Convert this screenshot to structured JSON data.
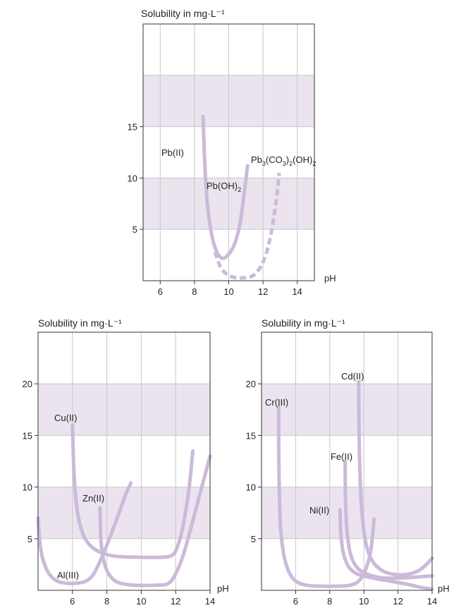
{
  "chart_data": [
    {
      "type": "line",
      "id": "pb",
      "title": "Solubility in mg·L⁻¹",
      "xlabel": "pH",
      "ylabel": "",
      "xlim": [
        5,
        15
      ],
      "ylim": [
        0,
        25
      ],
      "xticks": [
        6,
        8,
        10,
        12,
        14
      ],
      "yticks": [
        5,
        10,
        15
      ],
      "bands": [
        [
          5,
          10
        ],
        [
          15,
          20
        ]
      ],
      "grid": true,
      "series": [
        {
          "name": "Pb(II)",
          "style": "solid",
          "points": [
            [
              8.5,
              16
            ],
            [
              8.6,
              11.5
            ],
            [
              8.75,
              7.5
            ],
            [
              9.0,
              4.5
            ],
            [
              9.3,
              2.8
            ],
            [
              9.6,
              2.2
            ],
            [
              9.9,
              2.4
            ],
            [
              10.3,
              3.4
            ],
            [
              10.65,
              5.5
            ],
            [
              10.9,
              8.5
            ],
            [
              11.1,
              11.2
            ]
          ]
        },
        {
          "name": "Pb(OH)2",
          "style": "solid",
          "points": []
        },
        {
          "name": "Pb3(CO3)2(OH)2",
          "style": "dashed",
          "points": [
            [
              9.2,
              2.8
            ],
            [
              9.5,
              1.4
            ],
            [
              9.9,
              0.6
            ],
            [
              10.4,
              0.3
            ],
            [
              11.0,
              0.3
            ],
            [
              11.5,
              0.6
            ],
            [
              12.0,
              1.8
            ],
            [
              12.4,
              4.0
            ],
            [
              12.75,
              7.5
            ],
            [
              12.95,
              10.5
            ]
          ]
        }
      ],
      "labels": {
        "pb2": "Pb(II)",
        "pboh_main": "Pb(OH)",
        "pboh_sub": "2",
        "pbc_a": "Pb",
        "pbc_s1": "3",
        "pbc_b": "(CO",
        "pbc_s2": "3",
        "pbc_c": ")",
        "pbc_s3": "2",
        "pbc_d": "(OH)",
        "pbc_s4": "2"
      }
    },
    {
      "type": "line",
      "id": "cuznal",
      "title": "Solubility in mg·L⁻¹",
      "xlabel": "pH",
      "ylabel": "",
      "xlim": [
        4,
        14
      ],
      "ylim": [
        0,
        25
      ],
      "xticks": [
        6,
        8,
        10,
        12,
        14
      ],
      "yticks": [
        5,
        10,
        15,
        20
      ],
      "bands": [
        [
          5,
          10
        ],
        [
          15,
          20
        ]
      ],
      "grid": true,
      "series": [
        {
          "name": "Cu(II)",
          "points": [
            [
              6.0,
              16
            ],
            [
              6.1,
              11
            ],
            [
              6.3,
              7.5
            ],
            [
              6.6,
              5.5
            ],
            [
              7.0,
              4.4
            ],
            [
              7.6,
              3.7
            ],
            [
              8.5,
              3.3
            ],
            [
              10.0,
              3.2
            ],
            [
              11.2,
              3.2
            ],
            [
              11.8,
              3.4
            ],
            [
              12.1,
              4.2
            ],
            [
              12.4,
              6.0
            ],
            [
              12.75,
              9.5
            ],
            [
              13.0,
              13.5
            ]
          ]
        },
        {
          "name": "Zn(II)",
          "points": [
            [
              7.6,
              8.0
            ],
            [
              7.65,
              5.0
            ],
            [
              7.8,
              3.0
            ],
            [
              8.1,
              1.6
            ],
            [
              8.6,
              0.8
            ],
            [
              9.5,
              0.5
            ],
            [
              11.0,
              0.5
            ],
            [
              11.6,
              0.7
            ],
            [
              12.0,
              1.6
            ],
            [
              12.4,
              3.2
            ],
            [
              12.8,
              5.5
            ],
            [
              13.2,
              8.0
            ],
            [
              13.6,
              10.5
            ],
            [
              14.0,
              13
            ]
          ]
        },
        {
          "name": "Al(III)",
          "points": [
            [
              4.0,
              7.0
            ],
            [
              4.15,
              4.0
            ],
            [
              4.5,
              2.0
            ],
            [
              5.0,
              1.0
            ],
            [
              5.6,
              0.7
            ],
            [
              6.3,
              0.7
            ],
            [
              6.8,
              0.9
            ],
            [
              7.2,
              1.5
            ],
            [
              7.6,
              2.8
            ],
            [
              8.1,
              4.8
            ],
            [
              8.6,
              7.0
            ],
            [
              9.1,
              9.3
            ],
            [
              9.4,
              10.4
            ]
          ]
        }
      ],
      "labels": {
        "cu": "Cu(II)",
        "zn": "Zn(II)",
        "al": "Al(III)"
      }
    },
    {
      "type": "line",
      "id": "crfecdni",
      "title": "Solubility in mg·L⁻¹",
      "xlabel": "pH",
      "ylabel": "",
      "xlim": [
        4,
        14
      ],
      "ylim": [
        0,
        25
      ],
      "xticks": [
        6,
        8,
        10,
        12,
        14
      ],
      "yticks": [
        5,
        10,
        15,
        20
      ],
      "bands": [
        [
          5,
          10
        ],
        [
          15,
          20
        ]
      ],
      "grid": true,
      "series": [
        {
          "name": "Cr(III)",
          "points": [
            [
              5.0,
              17.8
            ],
            [
              5.02,
              12
            ],
            [
              5.1,
              6.5
            ],
            [
              5.3,
              3.5
            ],
            [
              5.6,
              1.8
            ],
            [
              6.0,
              0.9
            ],
            [
              6.6,
              0.5
            ],
            [
              7.5,
              0.4
            ],
            [
              8.5,
              0.4
            ],
            [
              9.2,
              0.5
            ],
            [
              9.7,
              0.9
            ],
            [
              10.1,
              2.0
            ],
            [
              10.4,
              3.8
            ],
            [
              10.6,
              6.9
            ]
          ]
        },
        {
          "name": "Cd(II)",
          "points": [
            [
              9.7,
              20.2
            ],
            [
              9.72,
              15
            ],
            [
              9.8,
              10
            ],
            [
              9.95,
              6.5
            ],
            [
              10.2,
              4.0
            ],
            [
              10.6,
              2.6
            ],
            [
              11.2,
              1.8
            ],
            [
              12.0,
              1.5
            ],
            [
              12.7,
              1.6
            ],
            [
              13.2,
              1.9
            ],
            [
              13.6,
              2.4
            ],
            [
              14.0,
              3.1
            ]
          ]
        },
        {
          "name": "Fe(II)",
          "points": [
            [
              8.9,
              12.5
            ],
            [
              8.92,
              9
            ],
            [
              9.0,
              6
            ],
            [
              9.2,
              3.6
            ],
            [
              9.6,
              2.2
            ],
            [
              10.3,
              1.5
            ],
            [
              11.2,
              1.2
            ],
            [
              12.2,
              1.2
            ],
            [
              13.2,
              1.3
            ],
            [
              14.0,
              1.4
            ]
          ]
        },
        {
          "name": "Ni(II)",
          "points": [
            [
              8.6,
              7.8
            ],
            [
              8.65,
              5.5
            ],
            [
              8.8,
              3.6
            ],
            [
              9.1,
              2.3
            ],
            [
              9.6,
              1.6
            ],
            [
              10.5,
              1.2
            ],
            [
              11.5,
              0.9
            ],
            [
              12.5,
              0.6
            ],
            [
              13.3,
              0.3
            ],
            [
              14.0,
              0.1
            ]
          ]
        }
      ],
      "labels": {
        "cr": "Cr(III)",
        "cd": "Cd(II)",
        "fe": "Fe(II)",
        "ni": "Ni(II)"
      }
    }
  ]
}
